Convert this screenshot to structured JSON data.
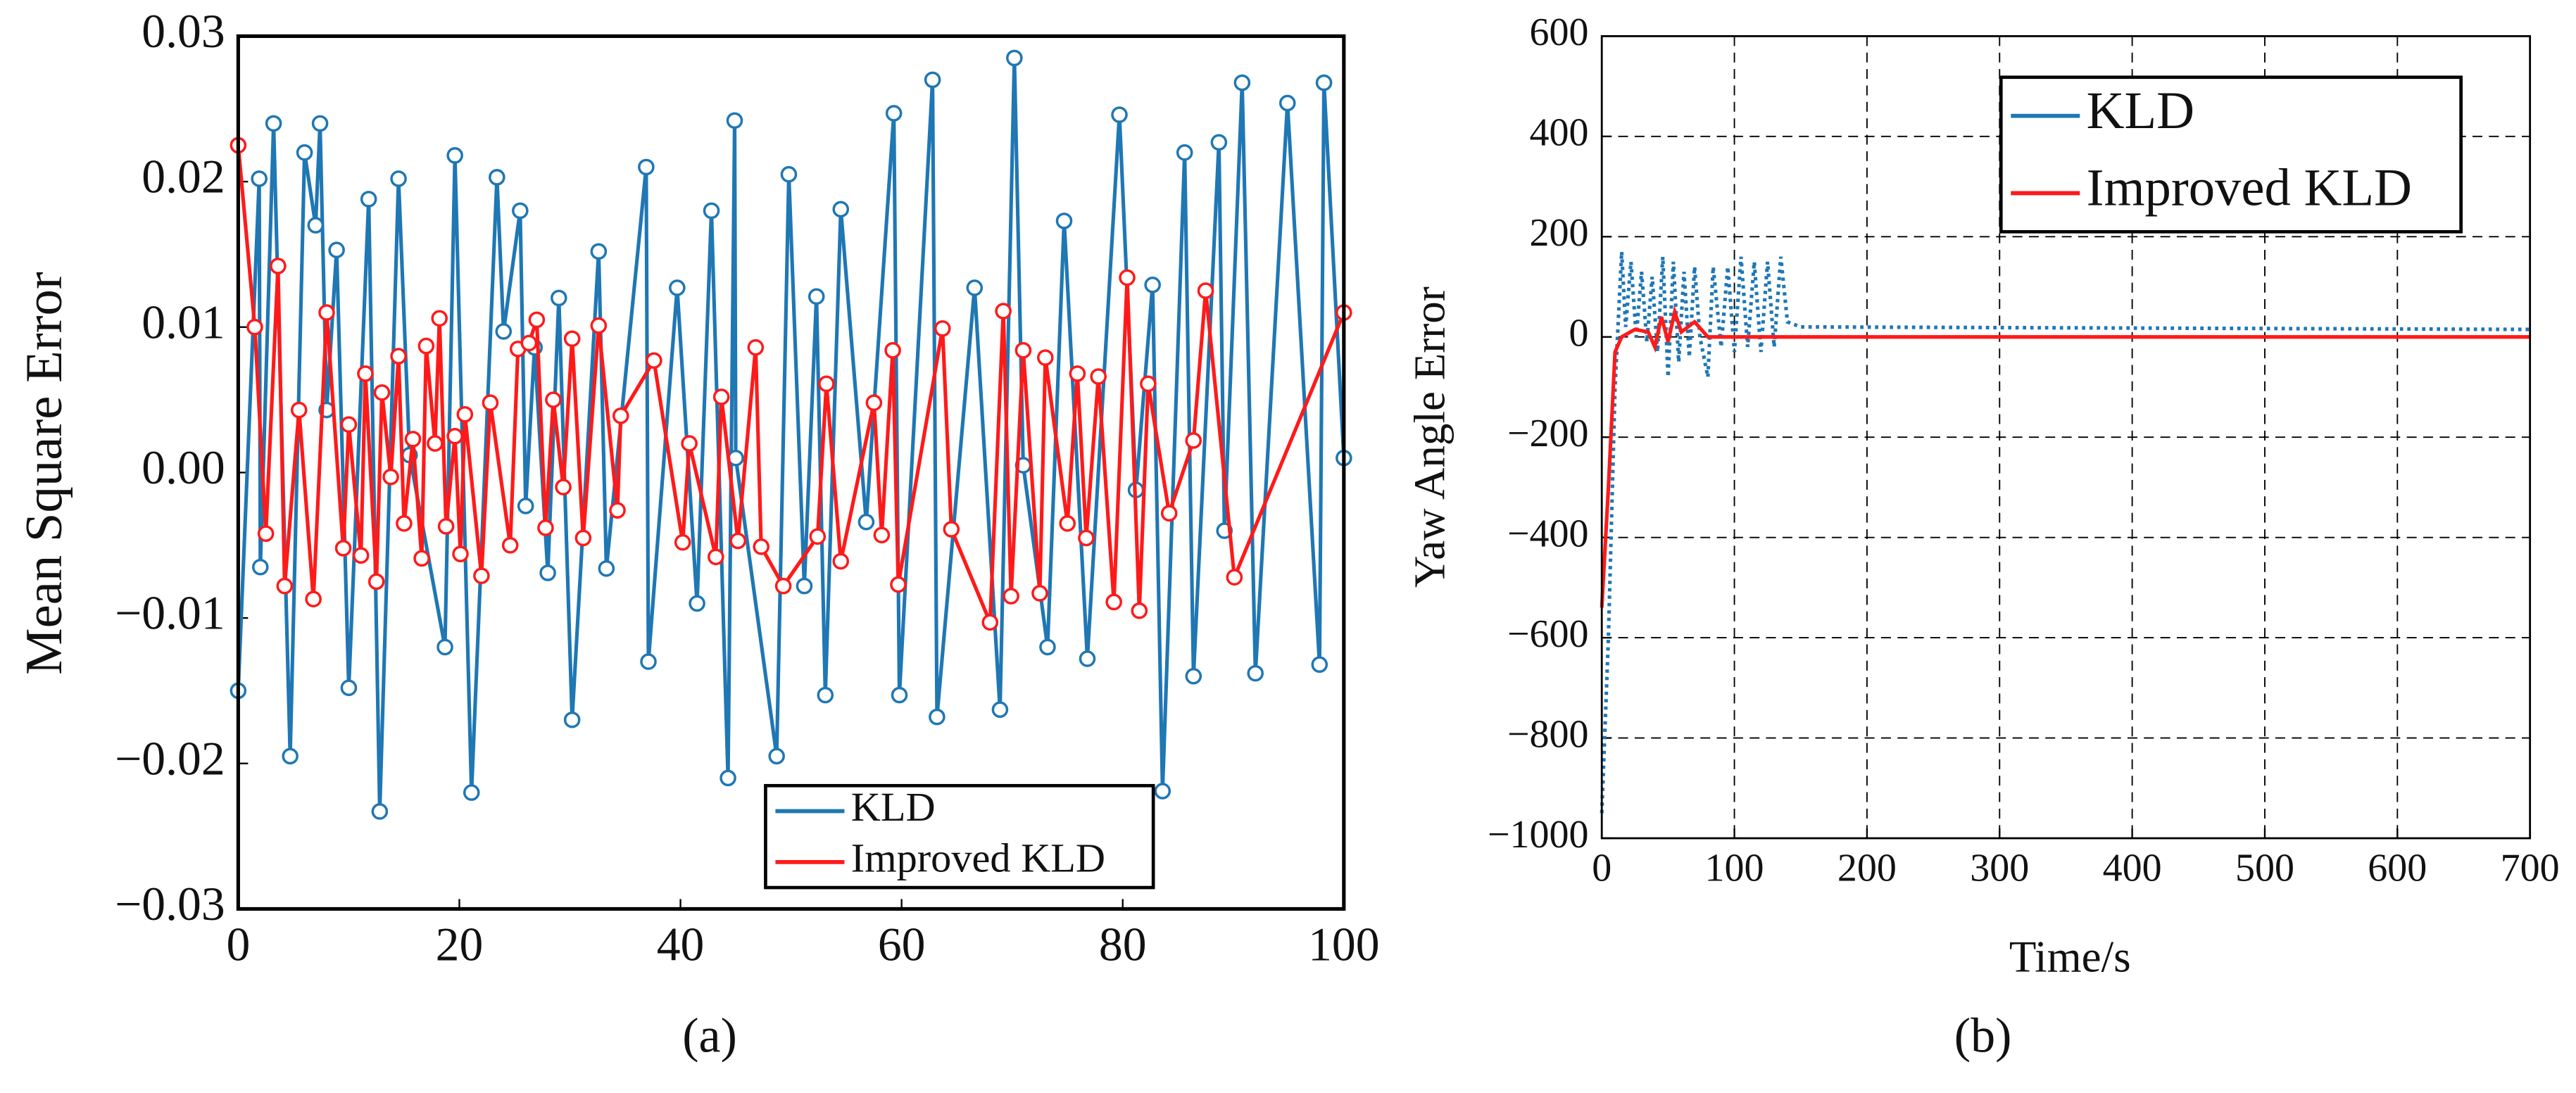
{
  "chart_data": [
    {
      "type": "line",
      "ylabel": "Mean Square Error",
      "caption": "(a)",
      "xlim": [
        0,
        100
      ],
      "xticks": [
        0,
        20,
        40,
        60,
        80,
        100
      ],
      "ylim": [
        -0.03,
        0.03
      ],
      "yticks": [
        {
          "value": -0.03,
          "label": "−0.03"
        },
        {
          "value": -0.02,
          "label": "−0.02"
        },
        {
          "value": -0.01,
          "label": "−0.01"
        },
        {
          "value": 0,
          "label": "0.00"
        },
        0.01,
        0.02,
        0.03
      ],
      "grid": false,
      "markers": true,
      "legend": "lower right",
      "series": [
        {
          "name": "KLD",
          "color": "#1f77b4",
          "line_style": "solid",
          "x": [
            0,
            1.9,
            2.0,
            3.2,
            4.7,
            6.0,
            7.0,
            7.4,
            8.0,
            8.9,
            10.0,
            11.8,
            12.8,
            14.5,
            15.5,
            18.7,
            19.6,
            21.1,
            23.4,
            24.0,
            25.5,
            26.0,
            26.8,
            28.0,
            29.0,
            30.2,
            32.6,
            33.3,
            36.9,
            37.1,
            39.7,
            41.5,
            42.8,
            44.3,
            44.9,
            45.0,
            48.7,
            49.8,
            51.2,
            52.3,
            53.1,
            54.5,
            56.8,
            59.3,
            59.8,
            62.8,
            63.2,
            66.6,
            68.9,
            70.2,
            71.0,
            73.2,
            74.7,
            76.8,
            79.7,
            81.2,
            82.7,
            83.6,
            85.6,
            86.4,
            88.7,
            89.2,
            90.8,
            92.0,
            94.9,
            97.8,
            98.2,
            100
          ],
          "values": [
            -0.015,
            0.0202,
            -0.0065,
            0.024,
            -0.0195,
            0.022,
            0.017,
            0.024,
            0.0043,
            0.0153,
            -0.0148,
            0.0188,
            -0.0233,
            0.0202,
            0.0012,
            -0.012,
            0.0218,
            -0.022,
            0.0203,
            0.0097,
            0.018,
            -0.0023,
            0.0086,
            -0.0069,
            0.012,
            -0.017,
            0.0152,
            -0.0066,
            0.021,
            -0.013,
            0.0127,
            -0.009,
            0.018,
            -0.021,
            0.0242,
            0.001,
            -0.0195,
            0.0205,
            -0.0078,
            0.0121,
            -0.0153,
            0.0181,
            -0.0034,
            0.0247,
            -0.0153,
            0.027,
            -0.0168,
            0.0127,
            -0.0163,
            0.0285,
            0.0005,
            -0.012,
            0.0173,
            -0.0128,
            0.0246,
            -0.0012,
            0.0129,
            -0.0219,
            0.022,
            -0.014,
            0.0227,
            -0.004,
            0.0268,
            -0.0138,
            0.0254,
            -0.0132,
            0.0268,
            0.001
          ]
        },
        {
          "name": "Improved KLD",
          "color": "#ff1a1a",
          "line_style": "solid",
          "x": [
            0,
            1.5,
            2.5,
            3.6,
            4.2,
            5.5,
            6.8,
            8.0,
            9.5,
            10.0,
            11.1,
            11.5,
            12.5,
            13.0,
            13.8,
            14.5,
            15.0,
            15.8,
            16.6,
            17.0,
            17.8,
            18.2,
            18.8,
            19.6,
            20.1,
            20.5,
            22.0,
            22.8,
            24.6,
            25.3,
            26.3,
            27.0,
            27.8,
            28.5,
            29.4,
            30.2,
            31.2,
            32.6,
            34.3,
            34.6,
            37.6,
            40.2,
            40.8,
            43.2,
            43.7,
            45.2,
            46.8,
            47.3,
            49.3,
            52.4,
            53.2,
            54.5,
            57.5,
            58.2,
            59.2,
            59.7,
            63.7,
            64.5,
            68.0,
            69.2,
            69.9,
            71.0,
            72.5,
            73.0,
            75.0,
            75.9,
            76.7,
            77.8,
            79.2,
            80.4,
            81.5,
            82.3,
            84.2,
            86.4,
            87.5,
            90.1,
            100
          ],
          "values": [
            0.0225,
            0.01,
            -0.0042,
            0.0142,
            -0.0078,
            0.0043,
            -0.0087,
            0.011,
            -0.0052,
            0.0033,
            -0.0057,
            0.0068,
            -0.0075,
            0.0055,
            -0.0003,
            0.008,
            -0.0035,
            0.0023,
            -0.0059,
            0.0087,
            0.002,
            0.0106,
            -0.0037,
            0.0025,
            -0.0056,
            0.004,
            -0.0071,
            0.0048,
            -0.005,
            0.0085,
            0.0089,
            0.0105,
            -0.0038,
            0.005,
            -0.001,
            0.0092,
            -0.0045,
            0.0101,
            -0.0026,
            0.0039,
            0.0077,
            -0.0048,
            0.002,
            -0.0058,
            0.0052,
            -0.0047,
            0.0086,
            -0.0051,
            -0.0078,
            -0.0044,
            0.0061,
            -0.0061,
            0.0048,
            -0.0043,
            0.0084,
            -0.0077,
            0.0099,
            -0.0039,
            -0.0103,
            0.0111,
            -0.0085,
            0.0084,
            -0.0083,
            0.0079,
            -0.0035,
            0.0068,
            -0.0045,
            0.0066,
            -0.0089,
            0.0134,
            -0.0095,
            0.0061,
            -0.0028,
            0.0022,
            0.0125,
            -0.0072,
            0.011
          ]
        }
      ]
    },
    {
      "type": "line",
      "xlabel": "Time/s",
      "ylabel": "Yaw Angle Error",
      "caption": "(b)",
      "xlim": [
        0,
        700
      ],
      "xticks": [
        0,
        100,
        200,
        300,
        400,
        500,
        600,
        700
      ],
      "ylim": [
        -1000,
        600
      ],
      "yticks": [
        {
          "value": -1000,
          "label": "−1000"
        },
        {
          "value": -800,
          "label": "−800"
        },
        {
          "value": -600,
          "label": "−600"
        },
        {
          "value": -400,
          "label": "−400"
        },
        {
          "value": -200,
          "label": "−200"
        },
        0,
        200,
        400,
        600
      ],
      "grid": true,
      "markers": false,
      "legend": "upper center",
      "series": [
        {
          "name": "KLD",
          "color": "#1f77b4",
          "line_style": "dotted",
          "x": [
            0,
            5,
            10,
            15,
            18,
            22,
            26,
            30,
            34,
            38,
            42,
            46,
            50,
            54,
            58,
            62,
            66,
            70,
            74,
            80,
            84,
            90,
            95,
            100,
            105,
            110,
            115,
            120,
            125,
            130,
            135,
            140,
            150,
            700
          ],
          "values": [
            -950,
            -600,
            -100,
            170,
            20,
            150,
            0,
            130,
            -10,
            120,
            -30,
            160,
            -80,
            150,
            -50,
            130,
            -40,
            140,
            0,
            -80,
            140,
            -20,
            140,
            -30,
            160,
            -20,
            150,
            -30,
            150,
            -20,
            160,
            30,
            20,
            15
          ]
        },
        {
          "name": "Improved KLD",
          "color": "#ff1a1a",
          "line_style": "solid",
          "x": [
            0,
            5,
            10,
            15,
            25,
            35,
            40,
            45,
            50,
            55,
            60,
            70,
            80,
            100,
            700
          ],
          "values": [
            -540,
            -300,
            -30,
            0,
            15,
            10,
            -20,
            40,
            -10,
            50,
            10,
            30,
            0,
            0,
            0
          ]
        }
      ]
    }
  ]
}
